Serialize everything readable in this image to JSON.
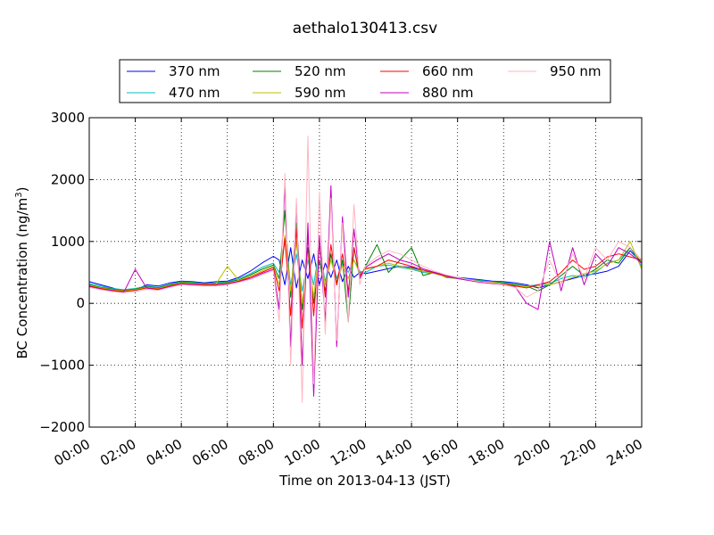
{
  "chart_data": {
    "type": "line",
    "title": "aethalo130413.csv",
    "xlabel": "Time on 2013-04-13 (JST)",
    "ylabel": "BC Concentration (ng/m",
    "ylabel_superscript": "3",
    "ylabel_suffix": ")",
    "xlim": [
      "2013-04-13 00:00",
      "2013-04-14 00:00"
    ],
    "ylim": [
      -2000,
      3000
    ],
    "grid": true,
    "legend_position": "top",
    "x_tick_labels": [
      "00:00",
      "02:00",
      "04:00",
      "06:00",
      "08:00",
      "10:00",
      "12:00",
      "14:00",
      "16:00",
      "18:00",
      "20:00",
      "22:00",
      "24:00"
    ],
    "y_tick_labels": [
      "−2000",
      "−1000",
      "0",
      "1000",
      "2000",
      "3000"
    ],
    "y_ticks": [
      -2000,
      -1000,
      0,
      1000,
      2000,
      3000
    ],
    "x_hours": [
      0,
      0.5,
      1,
      1.5,
      2,
      2.5,
      3,
      3.5,
      4,
      4.5,
      5,
      5.5,
      6,
      6.5,
      7,
      7.5,
      8,
      8.25,
      8.5,
      8.75,
      9,
      9.25,
      9.5,
      9.75,
      10,
      10.25,
      10.5,
      10.75,
      11,
      11.25,
      11.5,
      11.75,
      12,
      12.5,
      13,
      13.5,
      14,
      14.5,
      15,
      15.5,
      16,
      16.5,
      17,
      17.5,
      18,
      18.5,
      19,
      19.5,
      20,
      20.5,
      21,
      21.5,
      22,
      22.5,
      23,
      23.5,
      24
    ],
    "series": [
      {
        "name": "370 nm",
        "color": "#0000ff",
        "values": [
          350,
          300,
          250,
          200,
          220,
          300,
          280,
          330,
          360,
          350,
          330,
          350,
          360,
          420,
          520,
          650,
          760,
          700,
          300,
          900,
          250,
          700,
          400,
          800,
          300,
          650,
          420,
          700,
          350,
          600,
          420,
          500,
          480,
          520,
          560,
          600,
          580,
          520,
          500,
          450,
          420,
          400,
          380,
          360,
          350,
          330,
          300,
          250,
          300,
          350,
          400,
          450,
          480,
          520,
          600,
          850,
          650
        ]
      },
      {
        "name": "470 nm",
        "color": "#00bfbf",
        "values": [
          320,
          280,
          240,
          220,
          240,
          280,
          260,
          310,
          350,
          340,
          320,
          330,
          350,
          400,
          480,
          580,
          650,
          500,
          1000,
          300,
          800,
          200,
          700,
          300,
          900,
          350,
          800,
          400,
          650,
          500,
          700,
          520,
          500,
          600,
          620,
          580,
          550,
          500,
          480,
          440,
          410,
          390,
          370,
          350,
          340,
          310,
          280,
          300,
          320,
          400,
          450,
          420,
          500,
          650,
          700,
          900,
          600
        ]
      },
      {
        "name": "520 nm",
        "color": "#008000",
        "values": [
          300,
          260,
          230,
          210,
          230,
          270,
          250,
          300,
          340,
          330,
          320,
          320,
          340,
          380,
          460,
          550,
          620,
          400,
          1500,
          100,
          1300,
          -100,
          900,
          0,
          700,
          200,
          800,
          300,
          700,
          -300,
          900,
          400,
          600,
          950,
          500,
          700,
          900,
          450,
          500,
          420,
          400,
          380,
          360,
          340,
          330,
          300,
          280,
          200,
          300,
          450,
          600,
          450,
          550,
          700,
          650,
          900,
          650
        ]
      },
      {
        "name": "590 nm",
        "color": "#bfbf00",
        "values": [
          290,
          250,
          220,
          200,
          220,
          260,
          240,
          290,
          330,
          320,
          310,
          310,
          600,
          370,
          440,
          520,
          600,
          300,
          1100,
          200,
          1000,
          0,
          800,
          100,
          900,
          300,
          700,
          350,
          600,
          400,
          700,
          480,
          550,
          600,
          650,
          600,
          560,
          520,
          480,
          430,
          400,
          380,
          350,
          340,
          320,
          290,
          270,
          280,
          300,
          350,
          420,
          480,
          520,
          640,
          700,
          1000,
          550
        ]
      },
      {
        "name": "660 nm",
        "color": "#ff0000",
        "values": [
          280,
          240,
          210,
          190,
          210,
          250,
          230,
          280,
          320,
          310,
          300,
          300,
          320,
          360,
          420,
          500,
          580,
          200,
          1050,
          -200,
          1200,
          -400,
          1100,
          -200,
          1000,
          100,
          950,
          300,
          800,
          200,
          900,
          450,
          560,
          600,
          700,
          650,
          600,
          540,
          490,
          440,
          400,
          370,
          340,
          330,
          310,
          280,
          250,
          300,
          350,
          500,
          700,
          550,
          600,
          750,
          800,
          750,
          700
        ]
      },
      {
        "name": "880 nm",
        "color": "#bf00bf",
        "values": [
          270,
          230,
          200,
          180,
          550,
          240,
          220,
          270,
          310,
          300,
          290,
          290,
          310,
          350,
          400,
          480,
          550,
          -100,
          1900,
          -700,
          1600,
          -1000,
          1300,
          -1500,
          1100,
          -300,
          1900,
          -700,
          1400,
          100,
          1200,
          400,
          580,
          700,
          800,
          700,
          650,
          560,
          500,
          450,
          400,
          370,
          340,
          320,
          300,
          270,
          0,
          -100,
          1000,
          200,
          900,
          300,
          800,
          600,
          900,
          800,
          650
        ]
      },
      {
        "name": "950 nm",
        "color": "#ffb6c1",
        "values": [
          260,
          220,
          190,
          170,
          190,
          230,
          210,
          260,
          300,
          290,
          280,
          280,
          300,
          340,
          390,
          460,
          530,
          -300,
          2100,
          -1000,
          1700,
          -1600,
          2700,
          -1300,
          1800,
          -500,
          1700,
          -600,
          1300,
          -300,
          1600,
          300,
          600,
          750,
          850,
          800,
          700,
          600,
          520,
          460,
          420,
          380,
          350,
          330,
          300,
          260,
          100,
          200,
          700,
          300,
          800,
          400,
          900,
          700,
          1000,
          900,
          700
        ]
      }
    ]
  }
}
